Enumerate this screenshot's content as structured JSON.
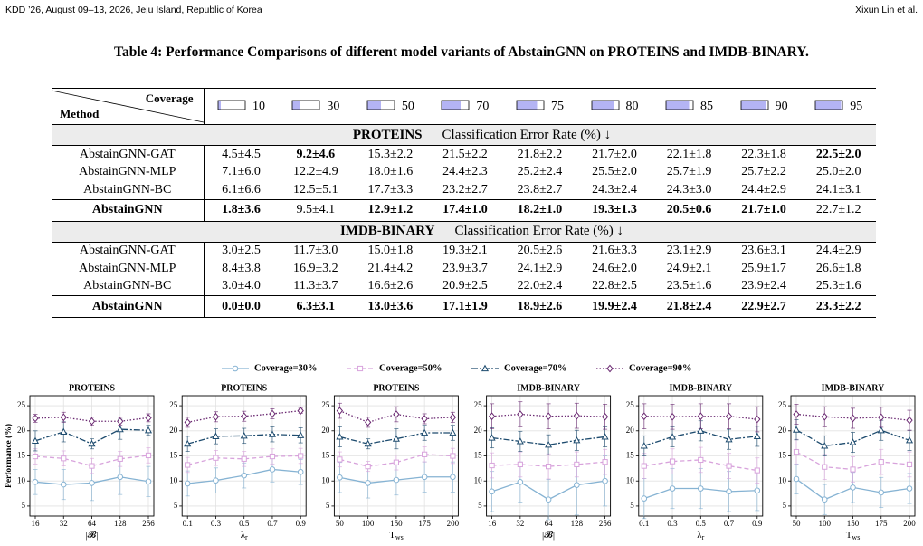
{
  "header": {
    "left": "KDD ’26, August 09–13, 2026, Jeju Island, Republic of Korea",
    "right": "Xixun Lin et al."
  },
  "table": {
    "caption": "Table 4: Performance Comparisons of different model variants of AbstainGNN on PROTEINS and IMDB-BINARY.",
    "method_label": "Method",
    "coverage_label": "Coverage",
    "coverages": [
      10,
      30,
      50,
      70,
      75,
      80,
      85,
      90,
      95
    ],
    "sections": [
      {
        "dataset": "PROTEINS",
        "metric": "Classification Error Rate (%) ↓",
        "rows": [
          {
            "method": "AbstainGNN-GAT",
            "cells": [
              "4.5±4.5",
              "9.2±4.6",
              "15.3±2.2",
              "21.5±2.2",
              "21.8±2.2",
              "21.7±2.0",
              "22.1±1.8",
              "22.3±1.8",
              "22.5±2.0"
            ],
            "bold": [
              1,
              8
            ]
          },
          {
            "method": "AbstainGNN-MLP",
            "cells": [
              "7.1±6.0",
              "12.2±4.9",
              "18.0±1.6",
              "24.4±2.3",
              "25.2±2.4",
              "25.5±2.0",
              "25.7±1.9",
              "25.7±2.2",
              "25.0±2.0"
            ]
          },
          {
            "method": "AbstainGNN-BC",
            "cells": [
              "6.1±6.6",
              "12.5±5.1",
              "17.7±3.3",
              "23.2±2.7",
              "23.8±2.7",
              "24.3±2.4",
              "24.3±3.0",
              "24.4±2.9",
              "24.1±3.1"
            ]
          },
          {
            "method": "AbstainGNN",
            "bold_method": true,
            "cells": [
              "1.8±3.6",
              "9.5±4.1",
              "12.9±1.2",
              "17.4±1.0",
              "18.2±1.0",
              "19.3±1.3",
              "20.5±0.6",
              "21.7±1.0",
              "22.7±1.2"
            ],
            "bold": [
              0,
              2,
              3,
              4,
              5,
              6,
              7
            ]
          }
        ]
      },
      {
        "dataset": "IMDB-BINARY",
        "metric": "Classification Error Rate (%) ↓",
        "rows": [
          {
            "method": "AbstainGNN-GAT",
            "cells": [
              "3.0±2.5",
              "11.7±3.0",
              "15.0±1.8",
              "19.3±2.1",
              "20.5±2.6",
              "21.6±3.3",
              "23.1±2.9",
              "23.6±3.1",
              "24.4±2.9"
            ]
          },
          {
            "method": "AbstainGNN-MLP",
            "cells": [
              "8.4±3.8",
              "16.9±3.2",
              "21.4±4.2",
              "23.9±3.7",
              "24.1±2.9",
              "24.6±2.0",
              "24.9±2.1",
              "25.9±1.7",
              "26.6±1.8"
            ]
          },
          {
            "method": "AbstainGNN-BC",
            "cells": [
              "3.0±4.0",
              "11.3±3.7",
              "16.6±2.6",
              "20.9±2.5",
              "22.0±2.4",
              "22.8±2.5",
              "23.5±1.6",
              "23.9±2.4",
              "25.3±1.6"
            ]
          },
          {
            "method": "AbstainGNN",
            "bold_method": true,
            "cells": [
              "0.0±0.0",
              "6.3±3.1",
              "13.0±3.6",
              "17.1±1.9",
              "18.9±2.6",
              "19.9±2.4",
              "21.8±2.4",
              "22.9±2.7",
              "23.3±2.2"
            ],
            "bold": [
              0,
              1,
              2,
              3,
              4,
              5,
              6,
              7,
              8
            ]
          }
        ]
      }
    ]
  },
  "figure": {
    "y_label": "Performance (%)",
    "legend": [
      {
        "name": "Coverage=30%",
        "color": "#86b3d3",
        "marker": "circle",
        "dash": "solid"
      },
      {
        "name": "Coverage=50%",
        "color": "#d8a3dc",
        "marker": "square",
        "dash": "dashed"
      },
      {
        "name": "Coverage=70%",
        "color": "#1d4b6e",
        "marker": "triangle",
        "dash": "dashdot"
      },
      {
        "name": "Coverage=90%",
        "color": "#6b2a72",
        "marker": "diamond",
        "dash": "dotted"
      }
    ],
    "ylim": [
      3,
      27
    ],
    "yticks": [
      5,
      10,
      15,
      20,
      25
    ],
    "charts": [
      {
        "type": "line",
        "title": "PROTEINS",
        "x_label": {
          "main": "|𝓑|"
        },
        "categories": [
          "16",
          "32",
          "64",
          "128",
          "256"
        ],
        "series": [
          {
            "values": [
              9.8,
              9.3,
              9.6,
              10.8,
              9.9
            ],
            "errors": [
              2.5,
              3,
              3.5,
              3.5,
              3
            ]
          },
          {
            "values": [
              14.9,
              14.5,
              13.0,
              14.4,
              15.1
            ],
            "errors": [
              1.5,
              1.5,
              1.5,
              1.5,
              1.5
            ]
          },
          {
            "values": [
              18.0,
              19.8,
              17.4,
              20.3,
              20.1
            ],
            "errors": [
              2,
              2,
              1,
              2,
              1
            ]
          },
          {
            "values": [
              22.5,
              22.7,
              21.9,
              21.9,
              22.6
            ],
            "errors": [
              0.8,
              1,
              0.8,
              0.8,
              0.8
            ]
          }
        ]
      },
      {
        "type": "line",
        "title": "PROTEINS",
        "x_label": {
          "main": "λ",
          "sub": "r"
        },
        "categories": [
          "0.1",
          "0.3",
          "0.5",
          "0.7",
          "0.9"
        ],
        "series": [
          {
            "values": [
              9.5,
              10.1,
              11.1,
              12.3,
              11.8
            ],
            "errors": [
              2.5,
              2.5,
              2.5,
              2.5,
              2.5
            ]
          },
          {
            "values": [
              13.2,
              14.6,
              14.4,
              14.9,
              15.0
            ],
            "errors": [
              1.5,
              1.5,
              1.5,
              1.5,
              1.5
            ]
          },
          {
            "values": [
              17.4,
              18.9,
              19.0,
              19.3,
              19.1
            ],
            "errors": [
              1.5,
              1.5,
              1.5,
              1.5,
              1.5
            ]
          },
          {
            "values": [
              21.7,
              22.8,
              22.9,
              23.4,
              24.0
            ],
            "errors": [
              1,
              1,
              1,
              1,
              0.5
            ]
          }
        ]
      },
      {
        "type": "line",
        "title": "PROTEINS",
        "x_label": {
          "main": "T",
          "sub": "ws"
        },
        "categories": [
          "50",
          "100",
          "150",
          "175",
          "200"
        ],
        "series": [
          {
            "values": [
              10.7,
              9.6,
              10.2,
              10.8,
              10.8
            ],
            "errors": [
              3,
              3,
              3,
              3,
              3
            ]
          },
          {
            "values": [
              14.3,
              12.9,
              13.7,
              15.3,
              15.0
            ],
            "errors": [
              1.5,
              1,
              1.5,
              1.5,
              1.5
            ]
          },
          {
            "values": [
              18.8,
              17.4,
              18.4,
              19.6,
              19.6
            ],
            "errors": [
              2,
              1,
              2,
              1.5,
              1.5
            ]
          },
          {
            "values": [
              24.0,
              21.7,
              23.3,
              22.4,
              22.7
            ],
            "errors": [
              1.5,
              1,
              1.5,
              1,
              1
            ]
          }
        ]
      },
      {
        "type": "line",
        "title": "IMDB-BINARY",
        "x_label": {
          "main": "|𝓑|"
        },
        "categories": [
          "16",
          "32",
          "64",
          "128",
          "256"
        ],
        "series": [
          {
            "values": [
              7.9,
              9.8,
              6.3,
              9.2,
              10.0
            ],
            "errors": [
              4,
              4,
              4,
              6,
              5
            ]
          },
          {
            "values": [
              13.1,
              13.3,
              12.9,
              13.3,
              13.8
            ],
            "errors": [
              2.5,
              2.5,
              2.5,
              2.5,
              2.5
            ]
          },
          {
            "values": [
              18.6,
              17.9,
              17.2,
              18.1,
              18.8
            ],
            "errors": [
              2,
              2,
              2,
              2,
              2
            ]
          },
          {
            "values": [
              22.9,
              23.3,
              22.9,
              23.0,
              22.8
            ],
            "errors": [
              2.5,
              2.5,
              2.5,
              2.5,
              2.5
            ]
          }
        ]
      },
      {
        "type": "line",
        "title": "IMDB-BINARY",
        "x_label": {
          "main": "λ",
          "sub": "r"
        },
        "categories": [
          "0.1",
          "0.3",
          "0.5",
          "0.7",
          "0.9"
        ],
        "series": [
          {
            "values": [
              6.5,
              8.5,
              8.5,
              7.9,
              8.1
            ],
            "errors": [
              4,
              4,
              4,
              4,
              4
            ]
          },
          {
            "values": [
              13.0,
              13.9,
              14.2,
              13.0,
              12.1
            ],
            "errors": [
              2.5,
              2.5,
              2.5,
              2.5,
              2.5
            ]
          },
          {
            "values": [
              17.0,
              18.8,
              20.0,
              18.3,
              18.9
            ],
            "errors": [
              2,
              2,
              2,
              2,
              2
            ]
          },
          {
            "values": [
              22.9,
              22.8,
              22.9,
              22.9,
              22.3
            ],
            "errors": [
              2.5,
              2.5,
              2.5,
              2.5,
              2.5
            ]
          }
        ]
      },
      {
        "type": "line",
        "title": "IMDB-BINARY",
        "x_label": {
          "main": "T",
          "sub": "ws"
        },
        "categories": [
          "50",
          "100",
          "150",
          "175",
          "200"
        ],
        "series": [
          {
            "values": [
              10.4,
              6.3,
              8.7,
              7.7,
              8.5
            ],
            "errors": [
              3,
              3,
              3,
              3,
              3
            ]
          },
          {
            "values": [
              15.8,
              12.8,
              12.3,
              13.8,
              13.3
            ],
            "errors": [
              2.5,
              2.5,
              2.5,
              2.5,
              2.5
            ]
          },
          {
            "values": [
              20.2,
              17.0,
              17.7,
              20.1,
              18.1
            ],
            "errors": [
              2,
              2,
              2,
              2,
              2
            ]
          },
          {
            "values": [
              23.3,
              22.8,
              22.5,
              22.7,
              22.1
            ],
            "errors": [
              2,
              2,
              2,
              2,
              2
            ]
          }
        ]
      }
    ]
  }
}
